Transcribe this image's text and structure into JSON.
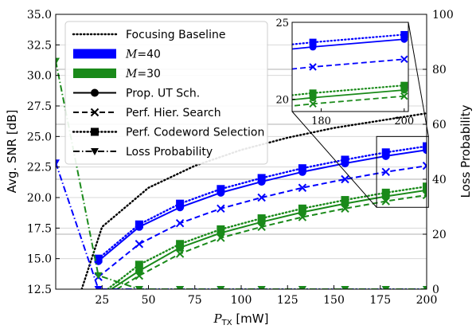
{
  "chart_data": {
    "type": "line",
    "xlabel": "P_TX [mW]",
    "xlabel_main": "P",
    "xlabel_sub": "TX",
    "xlabel_unit": " [mW]",
    "ylabel": "Avg. SNR [dB]",
    "y2label": "Loss Probability",
    "xlim": [
      0,
      200
    ],
    "ylim": [
      12.5,
      35.0
    ],
    "y2lim": [
      0,
      100
    ],
    "xticks": [
      "25",
      "50",
      "75",
      "100",
      "125",
      "150",
      "175",
      "200"
    ],
    "yticks": [
      "12.5",
      "15.0",
      "17.5",
      "20.0",
      "22.5",
      "25.0",
      "27.5",
      "30.0",
      "32.5",
      "35.0"
    ],
    "y2ticks": [
      "0",
      "20",
      "40",
      "60",
      "80",
      "100"
    ],
    "grid": true,
    "legend_position": "top-left",
    "legend": [
      {
        "label": "Focusing Baseline",
        "kind": "dotted"
      },
      {
        "label": "M=40",
        "kind": "patch",
        "color": "#0000ff",
        "italic_part": "M",
        "rest": "=40"
      },
      {
        "label": "M=30",
        "kind": "patch",
        "color": "#1a8a1a",
        "italic_part": "M",
        "rest": "=30"
      },
      {
        "label": "Prop. UT Sch.",
        "kind": "solid-circle"
      },
      {
        "label": "Perf. Hier. Search",
        "kind": "dashed-x"
      },
      {
        "label": "Perf. Codeword Selection",
        "kind": "dotted-square"
      },
      {
        "label": "Loss Probability",
        "kind": "dashdot-triangle"
      }
    ],
    "colors": {
      "blue": "#0000ff",
      "green": "#1a8a1a",
      "black": "#000000"
    },
    "x": [
      0,
      23,
      45,
      67,
      89,
      111,
      133,
      156,
      178,
      200
    ],
    "series": [
      {
        "name": "Focusing Baseline",
        "color": "#000000",
        "style": "dotted",
        "marker": "none",
        "axis": "left",
        "x": [
          14,
          25,
          50,
          75,
          100,
          125,
          150,
          175,
          200
        ],
        "values": [
          12.5,
          17.6,
          20.8,
          22.6,
          23.9,
          24.9,
          25.7,
          26.3,
          26.9
        ]
      },
      {
        "name": "M=40 Prop. UT Sch.",
        "color": "#0000ff",
        "style": "solid",
        "marker": "circle",
        "axis": "left",
        "x": [
          23,
          45,
          67,
          89,
          111,
          133,
          156,
          178,
          200
        ],
        "values": [
          14.8,
          17.6,
          19.2,
          20.4,
          21.3,
          22.1,
          22.8,
          23.4,
          23.9
        ]
      },
      {
        "name": "M=40 Perf. Hier. Search",
        "color": "#0000ff",
        "style": "dashed",
        "marker": "x",
        "axis": "left",
        "x": [
          23,
          45,
          67,
          89,
          111,
          133,
          156,
          178,
          200
        ],
        "values": [
          13.5,
          16.2,
          17.9,
          19.1,
          20.0,
          20.8,
          21.5,
          22.1,
          22.6
        ]
      },
      {
        "name": "M=40 Perf. Codeword Selection",
        "color": "#0000ff",
        "style": "dotted",
        "marker": "square",
        "axis": "left",
        "x": [
          23,
          45,
          67,
          89,
          111,
          133,
          156,
          178,
          200
        ],
        "values": [
          15.0,
          17.8,
          19.5,
          20.7,
          21.6,
          22.4,
          23.1,
          23.7,
          24.2
        ]
      },
      {
        "name": "M=30 Prop. UT Sch.",
        "color": "#1a8a1a",
        "style": "solid",
        "marker": "circle",
        "axis": "left",
        "x": [
          30,
          45,
          67,
          89,
          111,
          133,
          156,
          178,
          200
        ],
        "values": [
          12.5,
          14.0,
          15.9,
          17.1,
          18.0,
          18.8,
          19.5,
          20.1,
          20.6
        ]
      },
      {
        "name": "M=30 Perf. Hier. Search",
        "color": "#1a8a1a",
        "style": "dashed",
        "marker": "x",
        "axis": "left",
        "x": [
          33,
          45,
          67,
          89,
          111,
          133,
          156,
          178,
          200
        ],
        "values": [
          12.5,
          13.6,
          15.4,
          16.7,
          17.6,
          18.4,
          19.1,
          19.7,
          20.2
        ]
      },
      {
        "name": "M=30 Perf. Codeword Selection",
        "color": "#1a8a1a",
        "style": "dotted",
        "marker": "square",
        "axis": "left",
        "x": [
          28,
          45,
          67,
          89,
          111,
          133,
          156,
          178,
          200
        ],
        "values": [
          12.5,
          14.5,
          16.2,
          17.4,
          18.3,
          19.1,
          19.8,
          20.4,
          20.9
        ]
      },
      {
        "name": "M=40 Loss Probability",
        "color": "#0000ff",
        "style": "dashdot",
        "marker": "triangle",
        "axis": "right",
        "x": [
          0,
          23,
          45,
          67,
          89,
          111,
          133,
          156,
          178,
          200
        ],
        "values": [
          46,
          0,
          0,
          0,
          0,
          0,
          0,
          0,
          0,
          0
        ]
      },
      {
        "name": "M=30 Loss Probability",
        "color": "#1a8a1a",
        "style": "dashdot",
        "marker": "triangle",
        "axis": "right",
        "x": [
          0,
          23,
          45,
          67,
          89,
          111,
          133,
          156,
          178,
          200
        ],
        "values": [
          83,
          5,
          0,
          0,
          0,
          0,
          0,
          0,
          0,
          0
        ]
      }
    ],
    "inset": {
      "xlim": [
        173,
        201
      ],
      "ylim": [
        19.2,
        25.0
      ],
      "xticks": [
        "180",
        "200"
      ],
      "yticks": [
        "20",
        "25"
      ]
    }
  }
}
